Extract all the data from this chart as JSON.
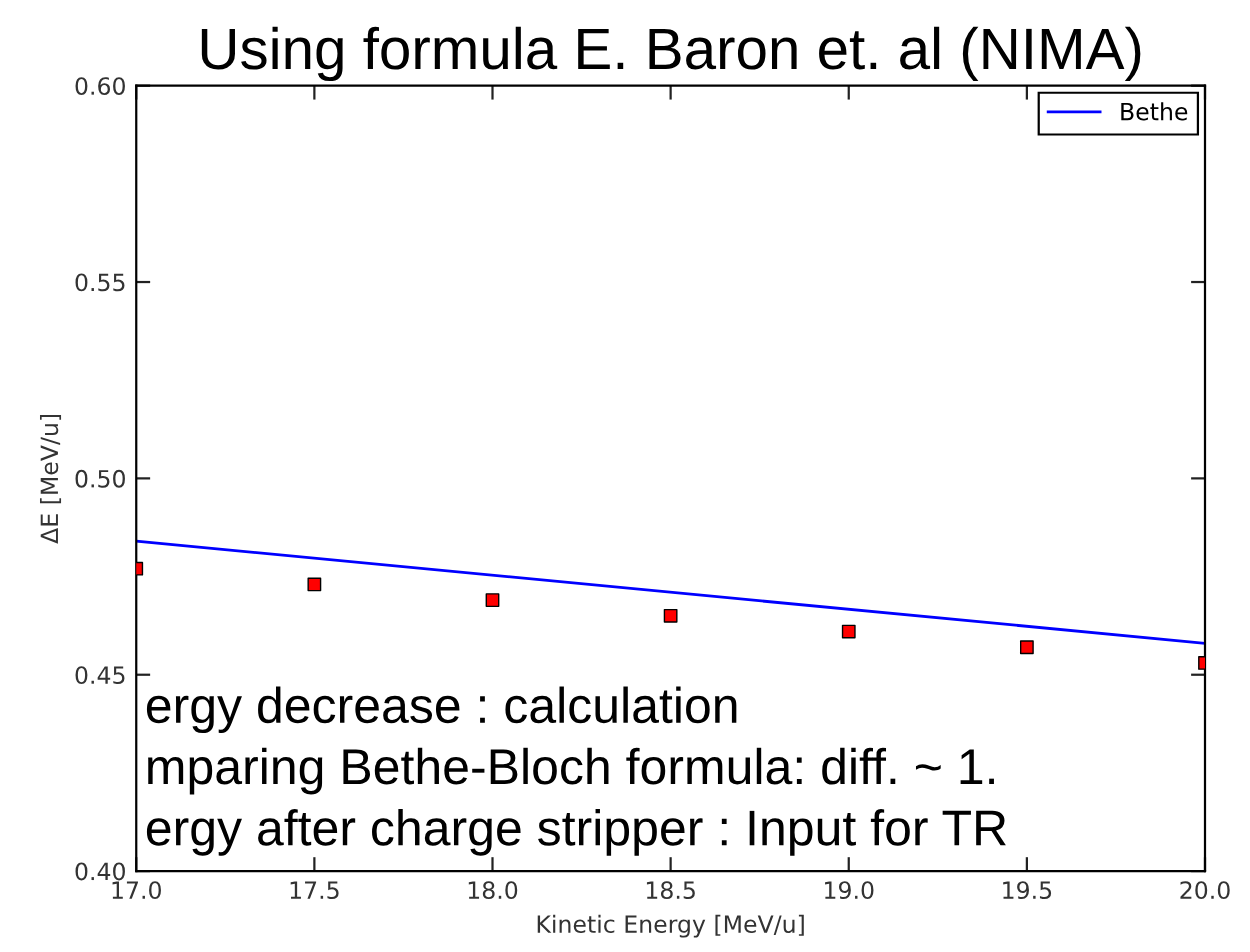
{
  "chart_data": {
    "type": "line",
    "title": "Using formula E. Baron et. al (NIMA)",
    "xlabel": "Kinetic Energy [MeV/u]",
    "ylabel": "ΔE [MeV/u]",
    "annotations": [
      "ergy decrease : calculation",
      "mparing Bethe-Bloch formula: diff. ~ 1.",
      "ergy after charge stripper : Input for TR"
    ],
    "series": [
      {
        "type": "scatter",
        "color": "#ff0000",
        "marker": "square",
        "x": [
          17.0,
          17.5,
          18.0,
          18.5,
          19.0,
          19.5,
          20.0
        ],
        "values": [
          0.477,
          0.473,
          0.469,
          0.465,
          0.461,
          0.457,
          0.453
        ]
      },
      {
        "name": "Bethe",
        "color": "#0000ff",
        "marker": "none",
        "line_style": "solid",
        "x": [
          17.0,
          20.0
        ],
        "values": [
          0.484,
          0.458
        ]
      }
    ],
    "xlim": [
      17,
      20
    ],
    "ylim": [
      0.4,
      0.6
    ],
    "xticks": [
      {
        "value": 17,
        "label": "17.0"
      },
      17.5,
      {
        "value": 18,
        "label": "18.0"
      },
      18.5,
      {
        "value": 19,
        "label": "19.0"
      },
      19.5,
      {
        "value": 20,
        "label": "20.0"
      }
    ],
    "yticks": [
      {
        "value": 0.4,
        "label": "0.40"
      },
      0.45,
      {
        "value": 0.5,
        "label": "0.50"
      },
      0.55,
      {
        "value": 0.6,
        "label": "0.60"
      }
    ],
    "legend": "top right"
  }
}
